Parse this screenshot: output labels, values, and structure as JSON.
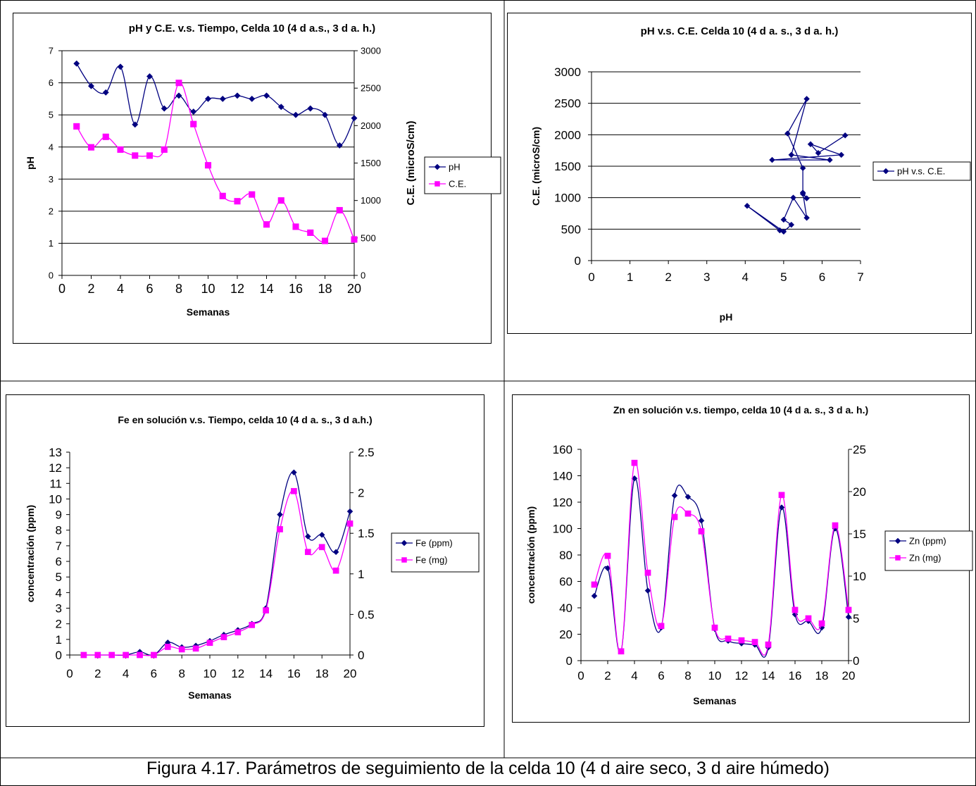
{
  "caption": "Figura 4.17. Parámetros de seguimiento de la celda 10 (4 d aire seco, 3 d aire húmedo)",
  "chart_data": [
    {
      "type": "line",
      "title": "pH y C.E. v.s. Tiempo, Celda 10 (4 d a.s., 3 d a. h.)",
      "xlabel": "Semanas",
      "ylabel": "pH",
      "y2label": "C.E. (microS/cm)",
      "xlim": [
        0,
        20
      ],
      "ylim": [
        0,
        7
      ],
      "y2lim": [
        0,
        3000
      ],
      "xticks": [
        0,
        2,
        4,
        6,
        8,
        10,
        12,
        14,
        16,
        18,
        20
      ],
      "yticks": [
        0,
        1,
        2,
        3,
        4,
        5,
        6,
        7
      ],
      "y2ticks": [
        0,
        500,
        1000,
        1500,
        2000,
        2500,
        3000
      ],
      "grid": true,
      "legend_position": "right",
      "x": [
        1,
        2,
        3,
        4,
        5,
        6,
        7,
        8,
        9,
        10,
        11,
        12,
        13,
        14,
        15,
        16,
        17,
        18,
        19,
        20
      ],
      "series": [
        {
          "name": "pH",
          "axis": "left",
          "color": "#000080",
          "marker": "diamond",
          "values": [
            6.6,
            5.9,
            5.7,
            6.5,
            4.7,
            6.2,
            5.2,
            5.6,
            5.1,
            5.5,
            5.5,
            5.6,
            5.5,
            5.6,
            5.25,
            5.0,
            5.2,
            5.0,
            4.05,
            4.9
          ]
        },
        {
          "name": "C.E.",
          "axis": "right",
          "color": "#FF00FF",
          "marker": "square",
          "values": [
            1990,
            1710,
            1850,
            1680,
            1600,
            1600,
            1680,
            2570,
            2020,
            1470,
            1060,
            990,
            1080,
            680,
            1000,
            650,
            570,
            460,
            870,
            480
          ]
        }
      ]
    },
    {
      "type": "scatter",
      "title": "pH v.s. C.E. Celda 10 (4 d a. s., 3 d a. h.)",
      "xlabel": "pH",
      "ylabel": "C.E. (microS/cm)",
      "xlim": [
        0,
        7
      ],
      "ylim": [
        0,
        3000
      ],
      "xticks": [
        0,
        1,
        2,
        3,
        4,
        5,
        6,
        7
      ],
      "yticks": [
        0,
        500,
        1000,
        1500,
        2000,
        2500,
        3000
      ],
      "grid": true,
      "legend_position": "right",
      "series": [
        {
          "name": "pH v.s. C.E.",
          "color": "#000080",
          "marker": "diamond",
          "connected": true,
          "points": [
            [
              6.6,
              1990
            ],
            [
              5.9,
              1710
            ],
            [
              5.7,
              1850
            ],
            [
              6.5,
              1680
            ],
            [
              4.7,
              1600
            ],
            [
              6.2,
              1600
            ],
            [
              5.2,
              1680
            ],
            [
              5.6,
              2570
            ],
            [
              5.1,
              2020
            ],
            [
              5.5,
              1470
            ],
            [
              5.5,
              1060
            ],
            [
              5.6,
              990
            ],
            [
              5.5,
              1080
            ],
            [
              5.6,
              680
            ],
            [
              5.25,
              1000
            ],
            [
              5.0,
              650
            ],
            [
              5.2,
              570
            ],
            [
              5.0,
              460
            ],
            [
              4.05,
              870
            ],
            [
              4.9,
              480
            ]
          ]
        }
      ]
    },
    {
      "type": "line",
      "title": "Fe en solución v.s. Tiempo, celda 10 (4 d a. s., 3 d a.h.)",
      "xlabel": "Semanas",
      "ylabel": "concentración (ppm)",
      "xlim": [
        0,
        20
      ],
      "ylim": [
        0,
        13
      ],
      "y2lim": [
        0,
        2.5
      ],
      "xticks": [
        0,
        2,
        4,
        6,
        8,
        10,
        12,
        14,
        16,
        18,
        20
      ],
      "yticks": [
        0,
        1,
        2,
        3,
        4,
        5,
        6,
        7,
        8,
        9,
        10,
        11,
        12,
        13
      ],
      "y2ticks": [
        0,
        0.5,
        1,
        1.5,
        2,
        2.5
      ],
      "grid": false,
      "smooth": true,
      "legend_position": "right",
      "x": [
        1,
        2,
        3,
        4,
        5,
        6,
        7,
        8,
        9,
        10,
        11,
        12,
        13,
        14,
        15,
        16,
        17,
        18,
        19,
        20
      ],
      "series": [
        {
          "name": "Fe (ppm)",
          "axis": "left",
          "color": "#000080",
          "marker": "diamond",
          "values": [
            0,
            0,
            0,
            0,
            0.2,
            0,
            0.8,
            0.5,
            0.6,
            0.9,
            1.3,
            1.6,
            2.0,
            3.0,
            9.0,
            11.7,
            7.6,
            7.7,
            6.6,
            9.2
          ]
        },
        {
          "name": "Fe (mg)",
          "axis": "right",
          "color": "#FF00FF",
          "marker": "square",
          "values": [
            0,
            0,
            0,
            0,
            0,
            0,
            0.1,
            0.07,
            0.08,
            0.15,
            0.22,
            0.28,
            0.37,
            0.55,
            1.55,
            2.02,
            1.27,
            1.33,
            1.04,
            1.62
          ]
        }
      ]
    },
    {
      "type": "line",
      "title": "Zn en solución v.s. tiempo, celda 10 (4 d a. s., 3 d a. h.)",
      "xlabel": "Semanas",
      "ylabel": "concentración (ppm)",
      "xlim": [
        0,
        20
      ],
      "ylim": [
        0,
        160
      ],
      "y2lim": [
        0,
        25
      ],
      "xticks": [
        0,
        2,
        4,
        6,
        8,
        10,
        12,
        14,
        16,
        18,
        20
      ],
      "yticks": [
        0,
        20,
        40,
        60,
        80,
        100,
        120,
        140,
        160
      ],
      "y2ticks": [
        0,
        5,
        10,
        15,
        20,
        25
      ],
      "grid": false,
      "smooth": true,
      "legend_position": "right",
      "x": [
        1,
        2,
        3,
        4,
        5,
        6,
        7,
        8,
        9,
        10,
        11,
        12,
        13,
        14,
        15,
        16,
        17,
        18,
        19,
        20
      ],
      "series": [
        {
          "name": "Zn (ppm)",
          "axis": "left",
          "color": "#000080",
          "marker": "diamond",
          "values": [
            49,
            70,
            7,
            138,
            53,
            25,
            125,
            124,
            106,
            24,
            15,
            13,
            12,
            10,
            116,
            35,
            30,
            25,
            100,
            33
          ]
        },
        {
          "name": "Zn (mg)",
          "axis": "right",
          "color": "#FF00FF",
          "marker": "square",
          "values": [
            9,
            12.4,
            1.1,
            23.4,
            10.4,
            4.1,
            17,
            17.4,
            15.3,
            3.9,
            2.6,
            2.4,
            2.2,
            1.9,
            19.6,
            6,
            5,
            4.4,
            16,
            6
          ]
        }
      ]
    }
  ]
}
